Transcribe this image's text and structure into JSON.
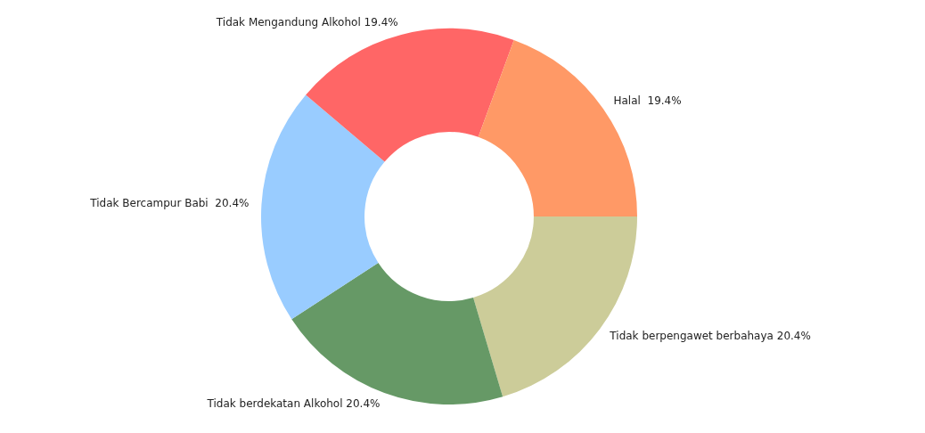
{
  "chart_data": {
    "type": "donut",
    "categories": [
      "Tidak berpengawet berbahaya",
      "Tidak berdekatan Alkohol",
      "Tidak Bercampur Babi ",
      "Tidak Mengandung Alkohol",
      "Halal "
    ],
    "values": [
      20.4,
      20.4,
      20.4,
      19.4,
      19.4
    ],
    "colors": [
      "#cccc99",
      "#669966",
      "#99ccff",
      "#ff6666",
      "#ff9966"
    ],
    "value_labels": [
      "20.4%",
      "20.4%",
      "20.4%",
      "19.4%",
      "19.4%"
    ],
    "legend": false
  }
}
